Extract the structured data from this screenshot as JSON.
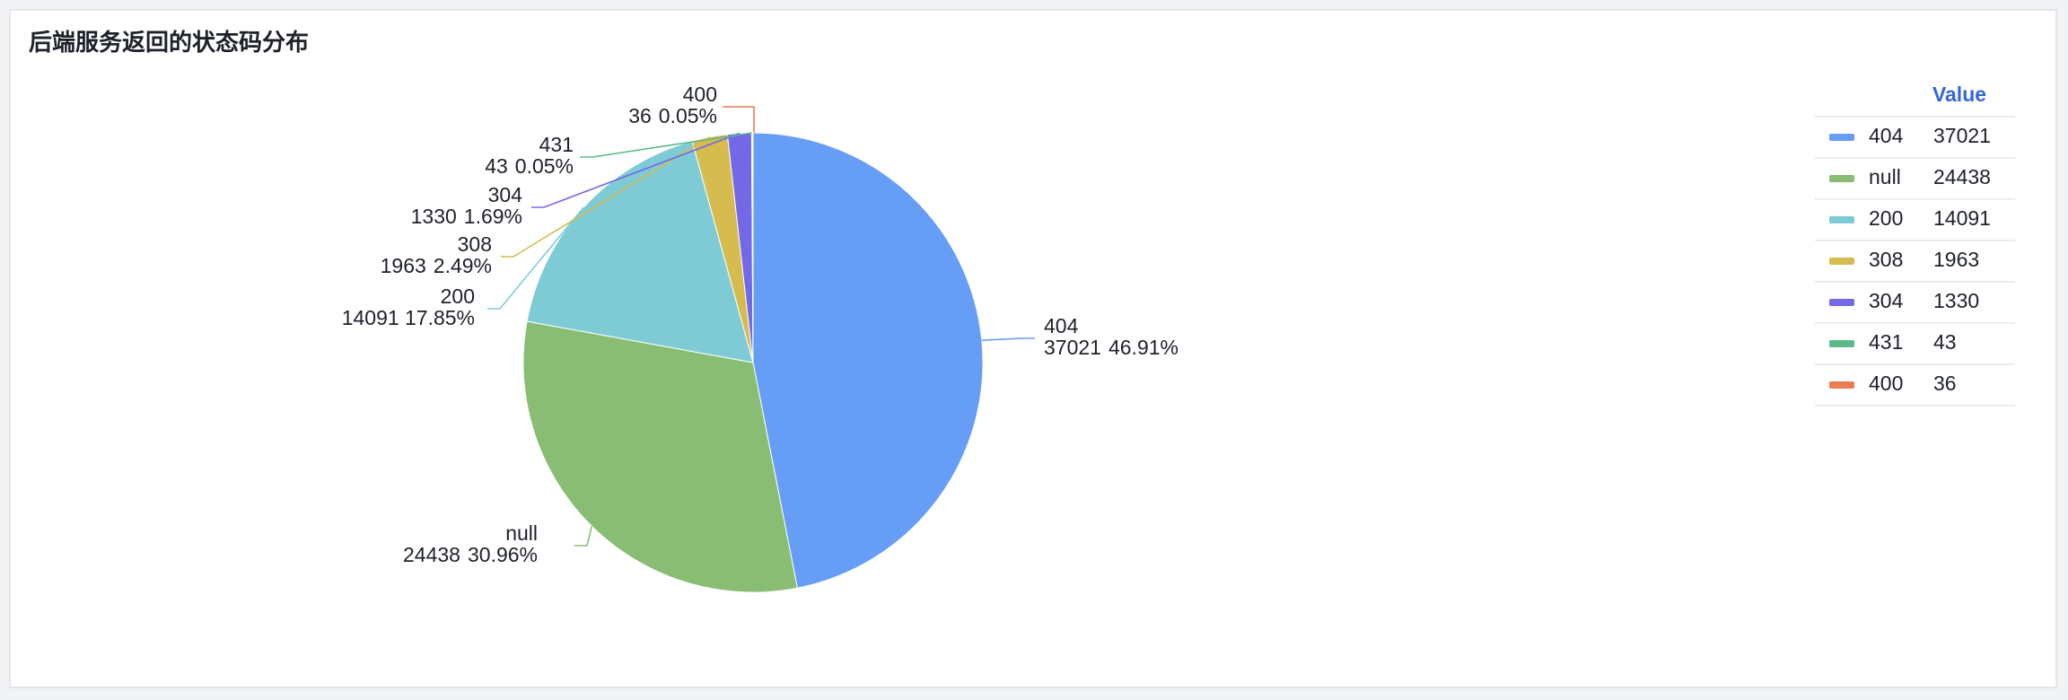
{
  "chart_data": {
    "type": "pie",
    "title": "后端服务返回的状态码分布",
    "categories": [
      "404",
      "null",
      "200",
      "308",
      "304",
      "431",
      "400"
    ],
    "values": [
      37021,
      24438,
      14091,
      1963,
      1330,
      43,
      36
    ],
    "percent_labels": [
      "46.91%",
      "30.96%",
      "17.85%",
      "2.49%",
      "1.69%",
      "0.05%",
      "0.05%"
    ],
    "colors": [
      "#659df7",
      "#89bd73",
      "#7ecbd5",
      "#d6bb4f",
      "#7368e6",
      "#5bb98a",
      "#ec7d50"
    ],
    "legend_header": "Value",
    "legend": "right"
  }
}
